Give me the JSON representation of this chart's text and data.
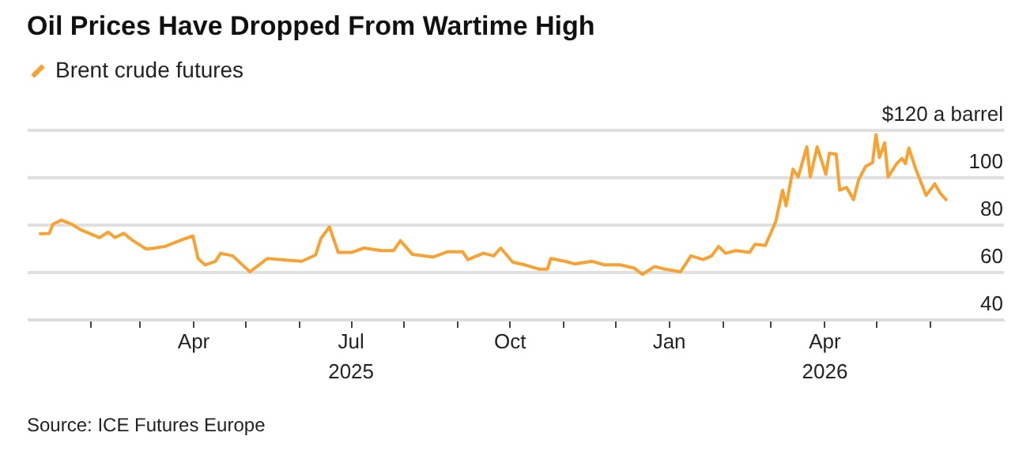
{
  "chart_data": {
    "type": "line",
    "title": "Oil Prices Have Dropped From Wartime High",
    "x": [
      "2025-01-02",
      "2025-01-08",
      "2025-01-10",
      "2025-01-15",
      "2025-01-21",
      "2025-01-26",
      "2025-02-06",
      "2025-02-11",
      "2025-02-15",
      "2025-02-20",
      "2025-02-25",
      "2025-03-05",
      "2025-03-10",
      "2025-03-16",
      "2025-03-25",
      "2025-04-01",
      "2025-04-04",
      "2025-04-08",
      "2025-04-14",
      "2025-04-17",
      "2025-04-24",
      "2025-04-29",
      "2025-05-04",
      "2025-05-10",
      "2025-05-14",
      "2025-05-25",
      "2025-06-03",
      "2025-06-11",
      "2025-06-14",
      "2025-06-19",
      "2025-06-24",
      "2025-07-02",
      "2025-07-09",
      "2025-07-19",
      "2025-07-26",
      "2025-07-30",
      "2025-08-06",
      "2025-08-18",
      "2025-08-26",
      "2025-09-04",
      "2025-09-07",
      "2025-09-16",
      "2025-09-22",
      "2025-09-26",
      "2025-10-03",
      "2025-10-10",
      "2025-10-18",
      "2025-10-23",
      "2025-10-25",
      "2025-11-02",
      "2025-11-08",
      "2025-11-18",
      "2025-11-25",
      "2025-12-04",
      "2025-12-12",
      "2025-12-17",
      "2025-12-24",
      "2025-12-30",
      "2026-01-08",
      "2026-01-14",
      "2026-01-21",
      "2026-01-26",
      "2026-01-30",
      "2026-02-03",
      "2026-02-09",
      "2026-02-17",
      "2026-02-20",
      "2026-02-26",
      "2026-03-04",
      "2026-03-08",
      "2026-03-10",
      "2026-03-14",
      "2026-03-17",
      "2026-03-22",
      "2026-03-24",
      "2026-03-28",
      "2026-04-02",
      "2026-04-04",
      "2026-04-08",
      "2026-04-10",
      "2026-04-14",
      "2026-04-18",
      "2026-04-21",
      "2026-04-25",
      "2026-04-29",
      "2026-05-01",
      "2026-05-03",
      "2026-05-06",
      "2026-05-08",
      "2026-05-13",
      "2026-05-16",
      "2026-05-18",
      "2026-05-20",
      "2026-05-24",
      "2026-05-30",
      "2026-06-04",
      "2026-06-07",
      "2026-06-11"
    ],
    "series": [
      {
        "name": "Brent crude futures",
        "color": "#f7a233",
        "values": [
          76,
          76.2,
          80,
          81.8,
          80,
          77.8,
          74.4,
          76.7,
          74.4,
          76.2,
          73.3,
          69.6,
          70,
          70.7,
          73.3,
          75.1,
          65.6,
          62.9,
          64.4,
          67.8,
          66.7,
          63.3,
          60,
          63.3,
          65.6,
          64.9,
          64.4,
          67.1,
          74,
          78.9,
          68.2,
          68.2,
          70,
          68.9,
          68.9,
          73.1,
          67.3,
          66.2,
          68.4,
          68.4,
          65.1,
          67.8,
          66.7,
          70,
          64,
          62.9,
          61.1,
          61.1,
          65.6,
          64.4,
          63.3,
          64.4,
          62.9,
          62.9,
          61.6,
          58.9,
          62.2,
          61.1,
          60,
          66.7,
          65.1,
          66.7,
          70.7,
          67.8,
          68.9,
          68.2,
          71.6,
          71.1,
          81.1,
          94.4,
          87.8,
          103.3,
          100,
          112.7,
          100,
          112.7,
          101.1,
          110,
          109.6,
          94.4,
          95.6,
          90.4,
          98.9,
          104.4,
          106,
          117.8,
          108.2,
          114.4,
          100,
          105.6,
          107.8,
          105.6,
          112.2,
          103.3,
          92.2,
          97.1,
          93.3,
          90
        ]
      }
    ],
    "xlim": [
      "2024-12-26",
      "2026-07-14"
    ],
    "xticks": [
      {
        "value": "2025-02-01",
        "label": null
      },
      {
        "value": "2025-03-01",
        "label": null
      },
      {
        "value": "2025-04-01",
        "label": "Apr"
      },
      {
        "value": "2025-05-01",
        "label": null
      },
      {
        "value": "2025-06-01",
        "label": null
      },
      {
        "value": "2025-07-01",
        "label": "Jul\n2025"
      },
      {
        "value": "2025-08-01",
        "label": null
      },
      {
        "value": "2025-09-01",
        "label": null
      },
      {
        "value": "2025-10-01",
        "label": "Oct"
      },
      {
        "value": "2025-11-01",
        "label": null
      },
      {
        "value": "2025-12-01",
        "label": null
      },
      {
        "value": "2026-01-01",
        "label": "Jan"
      },
      {
        "value": "2026-02-01",
        "label": null
      },
      {
        "value": "2026-03-01",
        "label": null
      },
      {
        "value": "2026-04-01",
        "label": "Apr\n2026"
      },
      {
        "value": "2026-05-01",
        "label": null
      },
      {
        "value": "2026-06-01",
        "label": null
      }
    ],
    "ylim": [
      40,
      120
    ],
    "yticks": [
      40,
      60,
      80,
      100,
      {
        "value": 120,
        "label": "$120 a barrel"
      }
    ],
    "grid": "y",
    "legend": "top left",
    "annotations": [
      "Source: ICE Futures Europe"
    ]
  }
}
